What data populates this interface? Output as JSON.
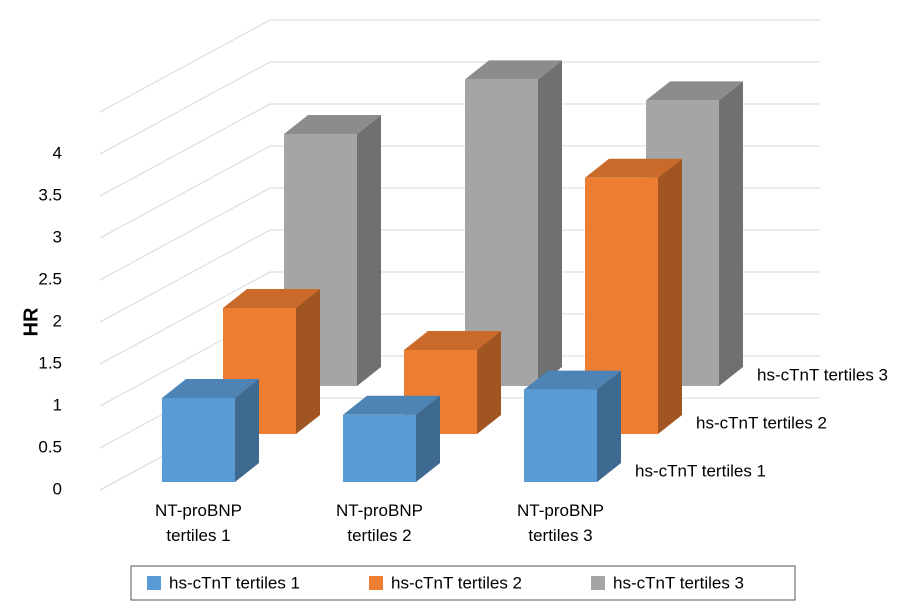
{
  "chart_data": {
    "type": "bar3d",
    "y_label": "HR",
    "categories": [
      "NT-proBNP\ntertiles 1",
      "NT-proBNP\ntertiles 2",
      "NT-proBNP\ntertiles 3"
    ],
    "series": [
      {
        "name": "hs-cTnT tertiles 1",
        "color": "#5b9bd5",
        "values": [
          1.0,
          0.8,
          1.1
        ]
      },
      {
        "name": "hs-cTnT tertiles 2",
        "color": "#ed7d31",
        "values": [
          1.5,
          1.0,
          3.05
        ]
      },
      {
        "name": "hs-cTnT tertiles 3",
        "color": "#a5a5a5",
        "values": [
          3.0,
          3.65,
          3.4
        ]
      }
    ],
    "ylim": [
      0,
      4.5
    ],
    "yticks": [
      0,
      0.5,
      1,
      1.5,
      2,
      2.5,
      3,
      3.5,
      4
    ],
    "grid": true
  }
}
